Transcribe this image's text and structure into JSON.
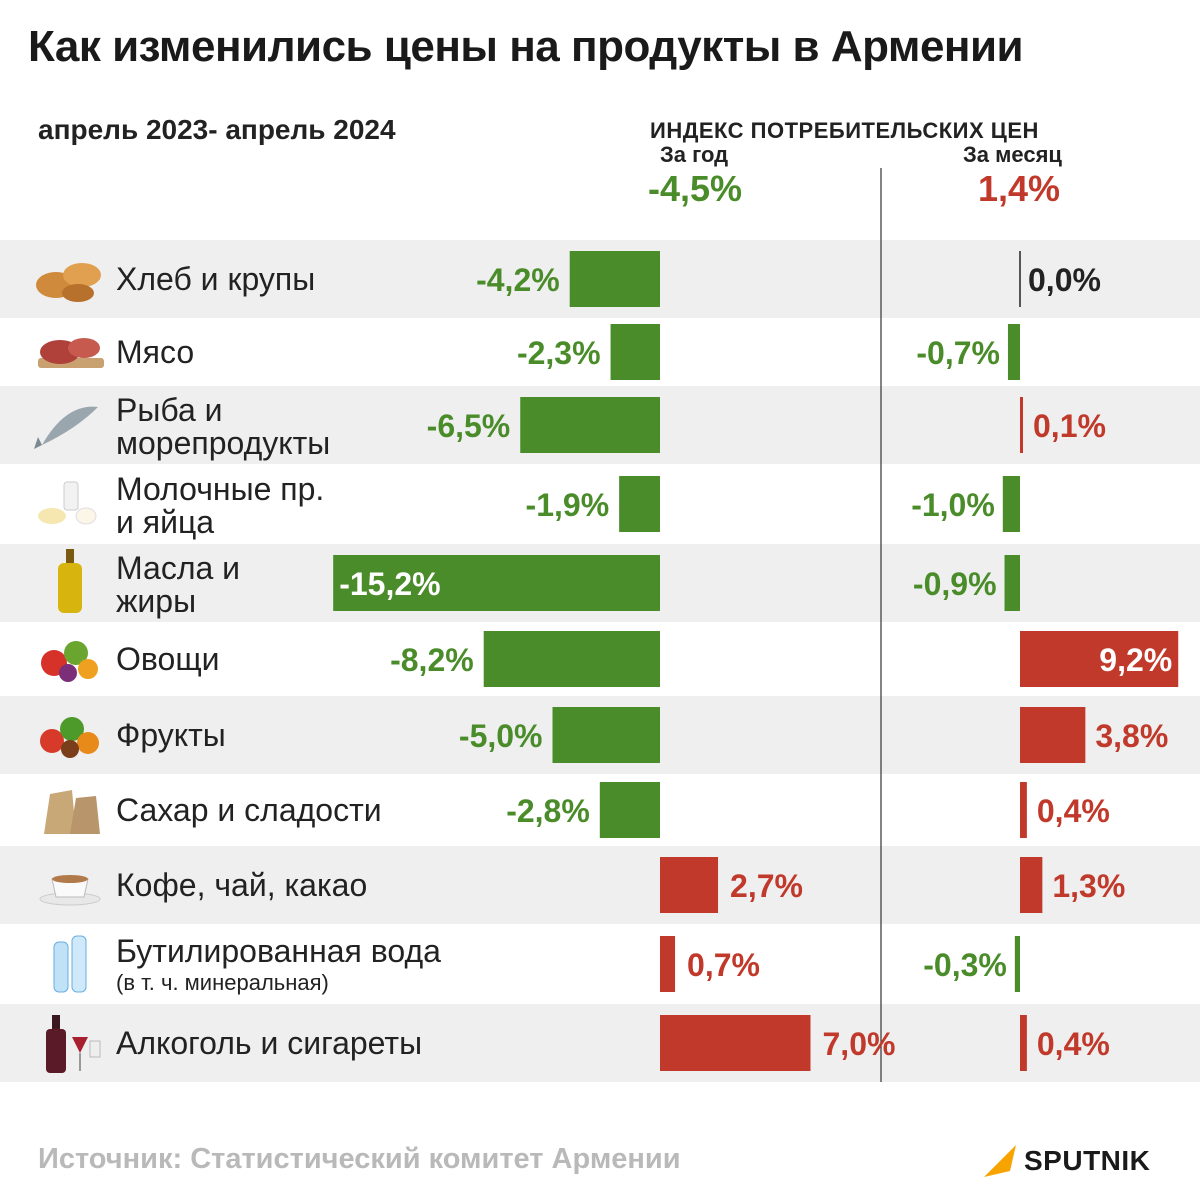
{
  "title": "Как изменились цены на продукты в Армении",
  "period": "апрель 2023- апрель 2024",
  "cpi": {
    "title": "ИНДЕКС ПОТРЕБИТЕЛЬСКИХ ЦЕН",
    "year_label": "За год",
    "month_label": "За месяц",
    "year_total": "-4,5%",
    "month_total": "1,4%"
  },
  "colors": {
    "positive": "#c0392b",
    "negative": "#4a8c2a",
    "zero": "#222222",
    "row_shade": "#efefef",
    "logo_accent": "#f7a400"
  },
  "chart_data": {
    "type": "bar",
    "orientation": "horizontal",
    "categories": [
      {
        "label": "Хлеб и крупы",
        "sublabel": "",
        "icon": "bread-icon"
      },
      {
        "label": "Мясо",
        "sublabel": "",
        "icon": "meat-icon"
      },
      {
        "label": "Рыба и морепродукты",
        "sublabel": "",
        "icon": "fish-icon"
      },
      {
        "label": "Молочные пр. и яйца",
        "sublabel": "",
        "icon": "dairy-icon"
      },
      {
        "label": "Масла и жиры",
        "sublabel": "",
        "icon": "oil-bottle-icon"
      },
      {
        "label": "Овощи",
        "sublabel": "",
        "icon": "vegetables-icon"
      },
      {
        "label": "Фрукты",
        "sublabel": "",
        "icon": "fruits-icon"
      },
      {
        "label": "Сахар и сладости",
        "sublabel": "",
        "icon": "sugar-sack-icon"
      },
      {
        "label": "Кофе, чай, какао",
        "sublabel": "",
        "icon": "coffee-cup-icon"
      },
      {
        "label": "Бутилированная вода",
        "sublabel": "(в т. ч. минеральная)",
        "icon": "water-bottles-icon"
      },
      {
        "label": "Алкоголь и сигареты",
        "sublabel": "",
        "icon": "wine-icon"
      }
    ],
    "series": [
      {
        "name": "За год",
        "values": [
          -4.2,
          -2.3,
          -6.5,
          -1.9,
          -15.2,
          -8.2,
          -5.0,
          -2.8,
          2.7,
          0.7,
          7.0
        ],
        "labels": [
          "-4,2%",
          "-2,3%",
          "-6,5%",
          "-1,9%",
          "-15,2%",
          "-8,2%",
          "-5,0%",
          "-2,8%",
          "2,7%",
          "0,7%",
          "7,0%"
        ]
      },
      {
        "name": "За месяц",
        "values": [
          0.0,
          -0.7,
          0.1,
          -1.0,
          -0.9,
          9.2,
          3.8,
          0.4,
          1.3,
          -0.3,
          0.4
        ],
        "labels": [
          "0,0%",
          "-0,7%",
          "0,1%",
          "-1,0%",
          "-0,9%",
          "9,2%",
          "3,8%",
          "0,4%",
          "1,3%",
          "-0,3%",
          "0,4%"
        ]
      }
    ]
  },
  "source": "Источник: Статистический комитет Армении",
  "logo": "SPUTNIK"
}
